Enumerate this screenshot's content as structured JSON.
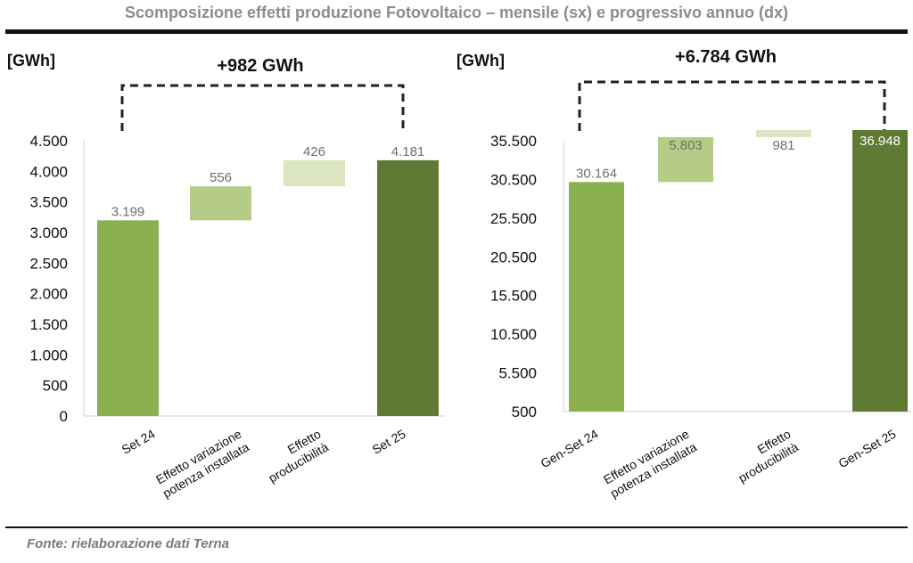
{
  "page": {
    "title": "Scomposizione effetti produzione Fotovoltaico – mensile (sx) e progressivo annuo (dx)",
    "source": "Fonte: rielaborazione dati Terna"
  },
  "chart_data": [
    {
      "type": "bar",
      "subtype": "waterfall",
      "unit": "[GWh]",
      "delta_label": "+982 GWh",
      "ylim": [
        0,
        4500
      ],
      "yticks": [
        0,
        500,
        1000,
        1500,
        2000,
        2500,
        3000,
        3500,
        4000,
        4500
      ],
      "ytick_labels": [
        "0",
        "500",
        "1.000",
        "1.500",
        "2.000",
        "2.500",
        "3.000",
        "3.500",
        "4.000",
        "4.500"
      ],
      "categories": [
        [
          "Set 24"
        ],
        [
          "Effetto variazione",
          "potenza installata"
        ],
        [
          "Effetto",
          "producibilità"
        ],
        [
          "Set 25"
        ]
      ],
      "values": [
        3199,
        556,
        426,
        4181
      ],
      "value_labels": [
        "3.199",
        "556",
        "426",
        "4.181"
      ],
      "bar_kind": [
        "total",
        "delta",
        "delta",
        "total"
      ],
      "colors": [
        "#8bb04f",
        "#b4cc85",
        "#dbe5bf",
        "#5f7a33"
      ]
    },
    {
      "type": "bar",
      "subtype": "waterfall",
      "unit": "[GWh]",
      "delta_label": "+6.784 GWh",
      "ylim": [
        500,
        35500
      ],
      "yticks": [
        500,
        5500,
        10500,
        15500,
        20500,
        25500,
        30500,
        35500
      ],
      "ytick_labels": [
        "500",
        "5.500",
        "10.500",
        "15.500",
        "20.500",
        "25.500",
        "30.500",
        "35.500"
      ],
      "categories": [
        [
          "Gen-Set 24"
        ],
        [
          "Effetto variazione",
          "potenza installata"
        ],
        [
          "Effetto",
          "producibilità"
        ],
        [
          "Gen-Set 25"
        ]
      ],
      "values": [
        30164,
        5803,
        981,
        36948
      ],
      "value_labels": [
        "30.164",
        "5.803",
        "981",
        "36.948"
      ],
      "bar_kind": [
        "total",
        "delta",
        "delta",
        "total"
      ],
      "colors": [
        "#8bb04f",
        "#b4cc85",
        "#dbe5bf",
        "#5f7a33"
      ]
    }
  ]
}
